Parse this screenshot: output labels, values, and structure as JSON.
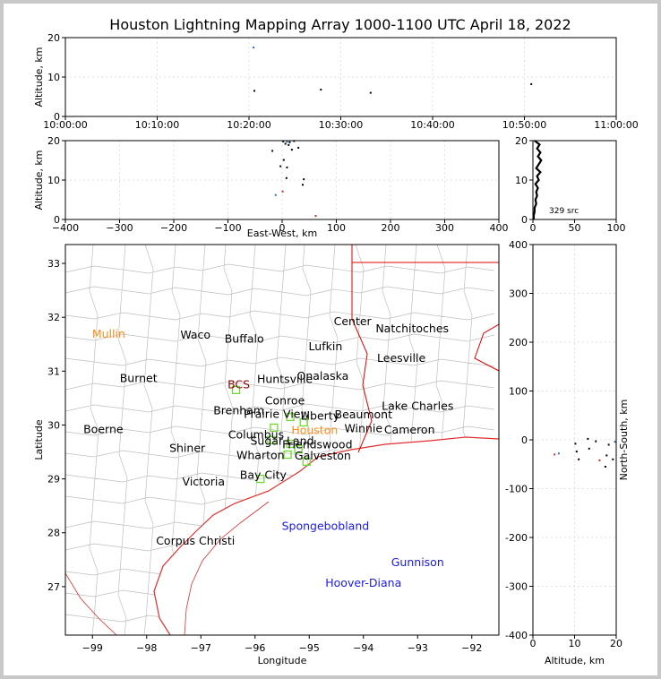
{
  "title": "Houston Lightning Mapping Array 1000-1100 UTC April 18, 2022",
  "colors": {
    "frame": "#c8c8c8",
    "state_border": "#e00000",
    "county": "#bfbfbf",
    "coast": "#e03030",
    "station": "#6cdc2c",
    "city": "#000000",
    "highlight": "#ff8c1a",
    "remote": "#1a1ae6",
    "bcs": "#8b0000"
  },
  "chart_data": [
    {
      "id": "time_altitude",
      "type": "scatter",
      "ylabel": "Altitude, km",
      "ylim": [
        0,
        20
      ],
      "xlim": [
        "10:00:00",
        "11:00:00"
      ],
      "xticks": [
        "10:00:00",
        "10:10:00",
        "10:20:00",
        "10:30:00",
        "10:40:00",
        "10:50:00",
        "11:00:00"
      ],
      "yticks": [
        0,
        10,
        20
      ],
      "grid": true,
      "points": [
        {
          "t": "10:20:30",
          "alt": 17.5,
          "color": "#2c6fbf"
        },
        {
          "t": "10:20:35",
          "alt": 6.5,
          "color": "#000000"
        },
        {
          "t": "10:27:50",
          "alt": 6.8,
          "color": "#000000"
        },
        {
          "t": "10:33:15",
          "alt": 6.0,
          "color": "#000000"
        },
        {
          "t": "10:50:45",
          "alt": 8.2,
          "color": "#000000"
        }
      ]
    },
    {
      "id": "ew_altitude",
      "type": "scatter",
      "xlabel": "East-West, km",
      "ylabel": "Altitude, km",
      "xlim": [
        -400,
        400
      ],
      "ylim": [
        0,
        20
      ],
      "xticks": [
        -400,
        -300,
        -200,
        -100,
        0,
        100,
        200,
        300,
        400
      ],
      "yticks": [
        0,
        10,
        20
      ],
      "grid": true,
      "points": [
        {
          "x": 2,
          "y": 19.8,
          "color": "#000"
        },
        {
          "x": 6,
          "y": 19.2,
          "color": "#000"
        },
        {
          "x": 9,
          "y": 19.7,
          "color": "#2c6fbf"
        },
        {
          "x": 12,
          "y": 18.9,
          "color": "#000"
        },
        {
          "x": 14,
          "y": 19.6,
          "color": "#000"
        },
        {
          "x": 18,
          "y": 17.7,
          "color": "#000"
        },
        {
          "x": -18,
          "y": 17.4,
          "color": "#000"
        },
        {
          "x": 22,
          "y": 19.9,
          "color": "#000"
        },
        {
          "x": 30,
          "y": 18.2,
          "color": "#000"
        },
        {
          "x": 3,
          "y": 15.1,
          "color": "#000"
        },
        {
          "x": -3,
          "y": 13.5,
          "color": "#000"
        },
        {
          "x": 9,
          "y": 13.2,
          "color": "#000"
        },
        {
          "x": 8,
          "y": 10.5,
          "color": "#000"
        },
        {
          "x": 40,
          "y": 10.2,
          "color": "#000"
        },
        {
          "x": 38,
          "y": 8.8,
          "color": "#000"
        },
        {
          "x": -12,
          "y": 6.2,
          "color": "#2c6fbf"
        },
        {
          "x": 1,
          "y": 7.1,
          "color": "#c03030"
        },
        {
          "x": 62,
          "y": 0.9,
          "color": "#c03030"
        }
      ]
    },
    {
      "id": "source_histogram",
      "type": "line",
      "ylim": [
        0,
        20
      ],
      "xlim": [
        0,
        100
      ],
      "xticks": [
        0,
        50,
        100
      ],
      "yticks": [
        0,
        10,
        20
      ],
      "annotation": "329 src",
      "x": [
        2,
        8,
        5,
        9,
        6,
        10,
        7,
        4,
        9,
        5,
        7,
        3,
        6,
        4,
        5,
        3,
        4,
        2,
        2,
        1,
        1
      ],
      "y": [
        20,
        19,
        18,
        17,
        16,
        15,
        14,
        13,
        12,
        11,
        10,
        9,
        8,
        7,
        6,
        5,
        4,
        3,
        2,
        1,
        0
      ]
    },
    {
      "id": "map",
      "type": "scatter",
      "xlabel": "Longitude",
      "ylabel": "Latitude",
      "xlim": [
        -99.5,
        -91.5
      ],
      "ylim": [
        26.1,
        33.35
      ],
      "xticks": [
        -99,
        -98,
        -97,
        -96,
        -95,
        -94,
        -93,
        -92
      ],
      "yticks": [
        27,
        28,
        29,
        30,
        31,
        32,
        33
      ],
      "labels": [
        {
          "text": "Mullin",
          "lon": -98.7,
          "lat": 31.62,
          "color": "#ff8c1a"
        },
        {
          "text": "Waco",
          "lon": -97.1,
          "lat": 31.6,
          "color": "#000"
        },
        {
          "text": "Buffalo",
          "lon": -96.2,
          "lat": 31.53,
          "color": "#000"
        },
        {
          "text": "Center",
          "lon": -94.2,
          "lat": 31.85,
          "color": "#000"
        },
        {
          "text": "Natchitoches",
          "lon": -93.1,
          "lat": 31.72,
          "color": "#000"
        },
        {
          "text": "Lufkin",
          "lon": -94.7,
          "lat": 31.39,
          "color": "#000"
        },
        {
          "text": "Leesville",
          "lon": -93.3,
          "lat": 31.17,
          "color": "#000"
        },
        {
          "text": "Burnet",
          "lon": -98.15,
          "lat": 30.8,
          "color": "#000"
        },
        {
          "text": "BCS",
          "lon": -96.3,
          "lat": 30.68,
          "color": "#8b0000"
        },
        {
          "text": "Onalaska",
          "lon": -94.75,
          "lat": 30.84,
          "color": "#000"
        },
        {
          "text": "Huntsville",
          "lon": -95.45,
          "lat": 30.78,
          "color": "#000"
        },
        {
          "text": "Conroe",
          "lon": -95.45,
          "lat": 30.38,
          "color": "#000"
        },
        {
          "text": "Lake Charles",
          "lon": -93.0,
          "lat": 30.28,
          "color": "#000"
        },
        {
          "text": "Brenham",
          "lon": -96.3,
          "lat": 30.2,
          "color": "#000"
        },
        {
          "text": "Prairie View",
          "lon": -95.6,
          "lat": 30.13,
          "color": "#000"
        },
        {
          "text": "Liberty",
          "lon": -94.8,
          "lat": 30.1,
          "color": "#000"
        },
        {
          "text": "Beaumont",
          "lon": -94.0,
          "lat": 30.12,
          "color": "#000"
        },
        {
          "text": "Boerne",
          "lon": -98.8,
          "lat": 29.85,
          "color": "#000"
        },
        {
          "text": "Winnie",
          "lon": -94.0,
          "lat": 29.87,
          "color": "#000"
        },
        {
          "text": "Cameron",
          "lon": -93.15,
          "lat": 29.84,
          "color": "#000"
        },
        {
          "text": "Columbus",
          "lon": -95.98,
          "lat": 29.75,
          "color": "#000"
        },
        {
          "text": "Houston",
          "lon": -94.9,
          "lat": 29.83,
          "color": "#ff8c1a"
        },
        {
          "text": "Sugar Land",
          "lon": -95.5,
          "lat": 29.63,
          "color": "#000"
        },
        {
          "text": "Friendswood",
          "lon": -94.85,
          "lat": 29.57,
          "color": "#000"
        },
        {
          "text": "Shiner",
          "lon": -97.25,
          "lat": 29.5,
          "color": "#000"
        },
        {
          "text": "Wharton",
          "lon": -95.9,
          "lat": 29.37,
          "color": "#000"
        },
        {
          "text": "Galveston",
          "lon": -94.75,
          "lat": 29.36,
          "color": "#000"
        },
        {
          "text": "Bay City",
          "lon": -95.85,
          "lat": 29.0,
          "color": "#000"
        },
        {
          "text": "Victoria",
          "lon": -96.95,
          "lat": 28.88,
          "color": "#000"
        },
        {
          "text": "Spongebobland",
          "lon": -94.7,
          "lat": 28.05,
          "color": "#1a1ae6"
        },
        {
          "text": "Corpus Christi",
          "lon": -97.1,
          "lat": 27.78,
          "color": "#000"
        },
        {
          "text": "Gunnison",
          "lon": -93.0,
          "lat": 27.38,
          "color": "#1a1ae6"
        },
        {
          "text": "Hoover-Diana",
          "lon": -94.0,
          "lat": 27.0,
          "color": "#1a1ae6"
        }
      ],
      "stations": [
        {
          "lon": -96.35,
          "lat": 30.65
        },
        {
          "lon": -95.35,
          "lat": 30.15
        },
        {
          "lon": -95.1,
          "lat": 30.05
        },
        {
          "lon": -95.65,
          "lat": 29.95
        },
        {
          "lon": -95.7,
          "lat": 29.72
        },
        {
          "lon": -95.35,
          "lat": 29.65
        },
        {
          "lon": -95.2,
          "lat": 29.55
        },
        {
          "lon": -95.4,
          "lat": 29.45
        },
        {
          "lon": -95.05,
          "lat": 29.32
        },
        {
          "lon": -95.9,
          "lat": 29.0
        }
      ]
    },
    {
      "id": "ns_altitude",
      "type": "scatter",
      "xlabel": "Altitude, km",
      "ylabel": "North-South, km",
      "xlim": [
        0,
        20
      ],
      "ylim": [
        -400,
        400
      ],
      "xticks": [
        0,
        10,
        20
      ],
      "yticks": [
        -400,
        -300,
        -200,
        -100,
        0,
        100,
        200,
        300,
        400
      ],
      "grid": true,
      "points": [
        {
          "x": 6.2,
          "y": -28,
          "color": "#2c6fbf"
        },
        {
          "x": 5.2,
          "y": -30,
          "color": "#c03030"
        },
        {
          "x": 10.2,
          "y": -8,
          "color": "#000"
        },
        {
          "x": 10.5,
          "y": -24,
          "color": "#000"
        },
        {
          "x": 11.0,
          "y": -40,
          "color": "#000"
        },
        {
          "x": 13.2,
          "y": 2,
          "color": "#000"
        },
        {
          "x": 13.5,
          "y": -18,
          "color": "#000"
        },
        {
          "x": 15.1,
          "y": -3,
          "color": "#000"
        },
        {
          "x": 16.0,
          "y": -42,
          "color": "#c03030"
        },
        {
          "x": 17.4,
          "y": -55,
          "color": "#000"
        },
        {
          "x": 17.7,
          "y": -32,
          "color": "#000"
        },
        {
          "x": 18.2,
          "y": -10,
          "color": "#000"
        },
        {
          "x": 19.2,
          "y": -40,
          "color": "#000"
        },
        {
          "x": 19.7,
          "y": -4,
          "color": "#2c6fbf"
        }
      ]
    }
  ]
}
